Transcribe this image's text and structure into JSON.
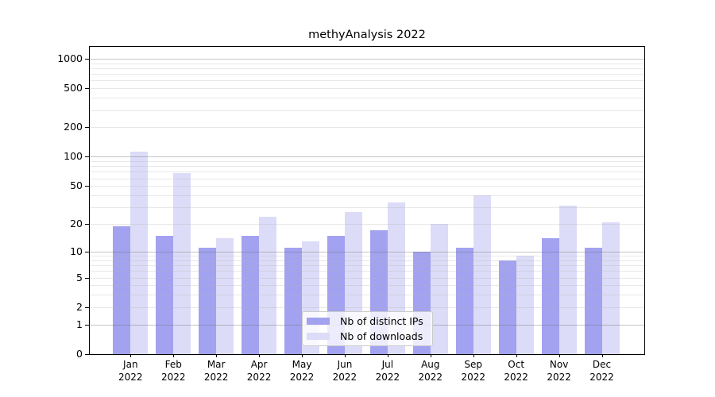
{
  "title": "methyAnalysis 2022",
  "chart_data": {
    "type": "bar",
    "title": "methyAnalysis 2022",
    "categories": [
      "Jan",
      "Feb",
      "Mar",
      "Apr",
      "May",
      "Jun",
      "Jul",
      "Aug",
      "Sep",
      "Oct",
      "Nov",
      "Dec"
    ],
    "category_year": "2022",
    "series": [
      {
        "name": "Nb of distinct IPs",
        "color": "#a2a2f0",
        "values": [
          19,
          15,
          11,
          15,
          11,
          15,
          17,
          10,
          11,
          8,
          14,
          11
        ]
      },
      {
        "name": "Nb of downloads",
        "color": "#dcdcf8",
        "values": [
          112,
          68,
          14,
          24,
          13,
          27,
          34,
          20,
          40,
          9,
          31,
          21
        ]
      }
    ],
    "yscale": "log10(value+1)",
    "yticks": [
      1000,
      500,
      200,
      100,
      50,
      20,
      10,
      5,
      2,
      1,
      0
    ],
    "ylim": [
      0,
      1320
    ],
    "grid": {
      "major": [
        1,
        10,
        100,
        1000
      ],
      "minor": [
        2,
        3,
        4,
        5,
        6,
        7,
        8,
        9,
        20,
        30,
        40,
        50,
        60,
        70,
        80,
        90,
        200,
        300,
        400,
        500,
        600,
        700,
        800,
        900
      ]
    },
    "legend_position": "inside-bottom-center"
  }
}
